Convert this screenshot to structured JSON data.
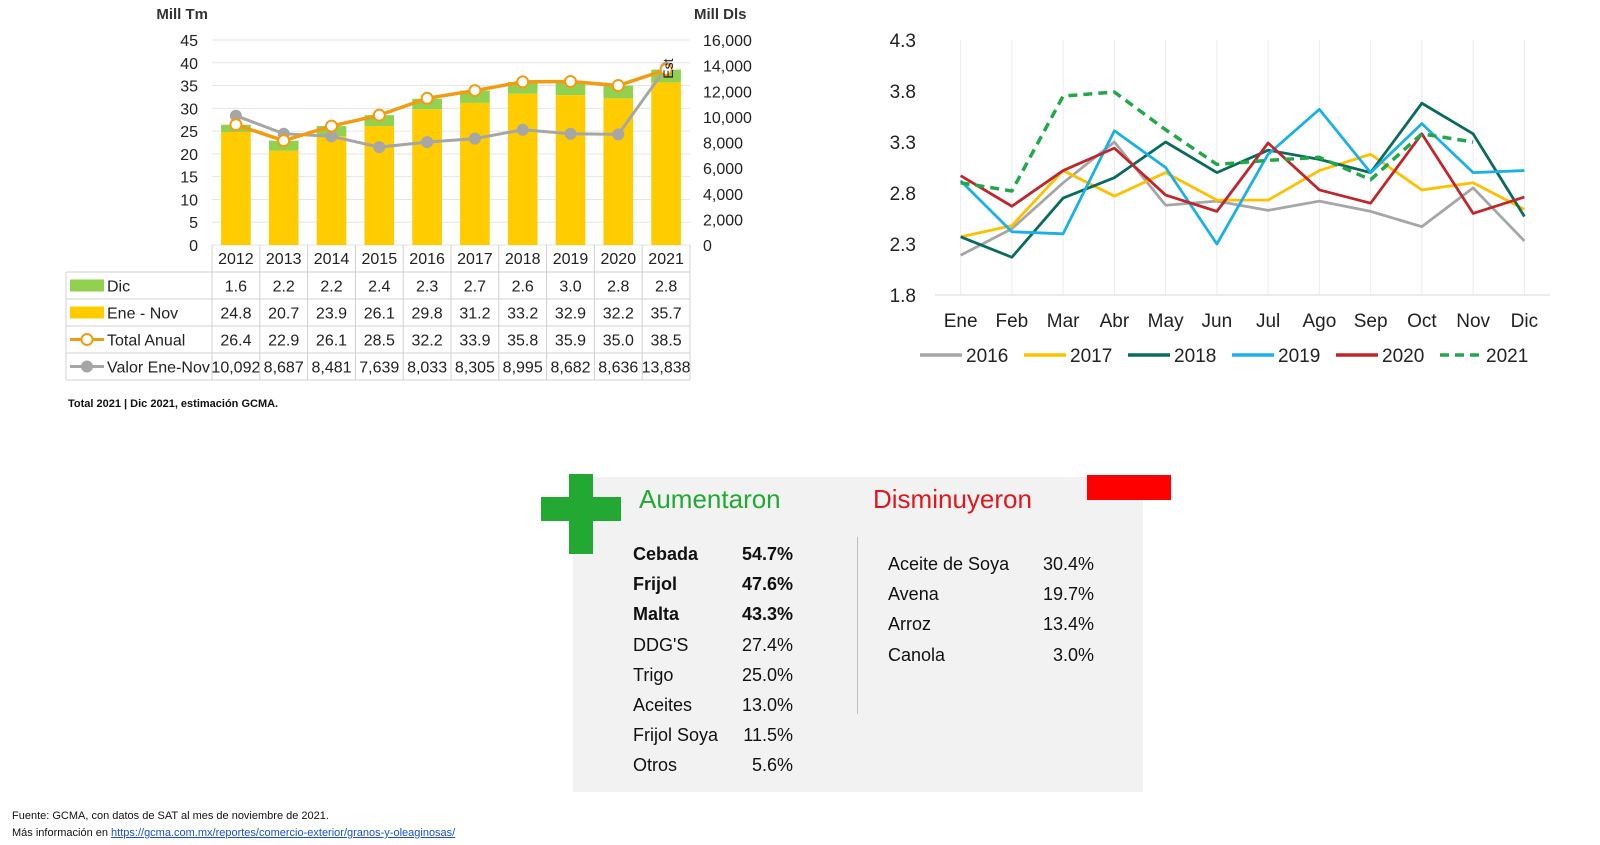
{
  "bar_chart_note": "Total 2021 | Dic 2021, estimación GCMA.",
  "panel": {
    "increase_title": "Aumentaron",
    "decrease_title": "Disminuyeron",
    "increase_color": "#22a833",
    "decrease_color": "#e3161d",
    "increased": [
      {
        "name": "Cebada",
        "pct": "54.7%",
        "bold": true
      },
      {
        "name": "Frijol",
        "pct": "47.6%",
        "bold": true
      },
      {
        "name": "Malta",
        "pct": "43.3%",
        "bold": true
      },
      {
        "name": "DDG'S",
        "pct": "27.4%",
        "bold": false
      },
      {
        "name": "Trigo",
        "pct": "25.0%",
        "bold": false
      },
      {
        "name": "Aceites",
        "pct": "13.0%",
        "bold": false
      },
      {
        "name": "Frijol Soya",
        "pct": "11.5%",
        "bold": false
      },
      {
        "name": "Otros",
        "pct": "5.6%",
        "bold": false
      }
    ],
    "decreased": [
      {
        "name": "Aceite de Soya",
        "pct": "30.4%"
      },
      {
        "name": "Avena",
        "pct": "19.7%"
      },
      {
        "name": "Arroz",
        "pct": "13.4%"
      },
      {
        "name": "Canola",
        "pct": "3.0%"
      }
    ]
  },
  "source": {
    "line1": "Fuente: GCMA, con datos de SAT al mes de noviembre de 2021.",
    "line2_prefix": "Más información en ",
    "link": "https://gcma.com.mx/reportes/comercio-exterior/granos-y-oleaginosas/"
  },
  "chart_data": [
    {
      "type": "bar",
      "stacked": true,
      "y1label": "Mill Tm",
      "y2label": "Mill Dls",
      "y1lim": [
        0,
        45
      ],
      "y1ticks": [
        "0",
        "5",
        "10",
        "15",
        "20",
        "25",
        "30",
        "35",
        "40",
        "45"
      ],
      "y2lim": [
        0,
        16000
      ],
      "y2ticks": [
        "0",
        "2,000",
        "4,000",
        "6,000",
        "8,000",
        "10,000",
        "12,000",
        "14,000",
        "16,000"
      ],
      "categories": [
        "2012",
        "2013",
        "2014",
        "2015",
        "2016",
        "2017",
        "2018",
        "2019",
        "2020",
        "2021"
      ],
      "annotation": "Est",
      "series": [
        {
          "name": "Dic",
          "kind": "bar",
          "color": "#92d050",
          "values": [
            1.6,
            2.2,
            2.2,
            2.4,
            2.3,
            2.7,
            2.6,
            3.0,
            2.8,
            2.8
          ],
          "labels": [
            "1.6",
            "2.2",
            "2.2",
            "2.4",
            "2.3",
            "2.7",
            "2.6",
            "3.0",
            "2.8",
            "2.8"
          ]
        },
        {
          "name": "Ene - Nov",
          "kind": "bar",
          "color": "#ffcc00",
          "values": [
            24.8,
            20.7,
            23.9,
            26.1,
            29.8,
            31.2,
            33.2,
            32.9,
            32.2,
            35.7
          ],
          "labels": [
            "24.8",
            "20.7",
            "23.9",
            "26.1",
            "29.8",
            "31.2",
            "33.2",
            "32.9",
            "32.2",
            "35.7"
          ]
        },
        {
          "name": "Total Anual",
          "kind": "line",
          "axis": "y1",
          "color": "#f39c12",
          "values": [
            26.4,
            22.9,
            26.1,
            28.5,
            32.2,
            33.9,
            35.8,
            35.9,
            35.0,
            38.5
          ],
          "labels": [
            "26.4",
            "22.9",
            "26.1",
            "28.5",
            "32.2",
            "33.9",
            "35.8",
            "35.9",
            "35.0",
            "38.5"
          ]
        },
        {
          "name": "Valor Ene-Nov",
          "kind": "line",
          "axis": "y2",
          "color": "#a6a6a6",
          "values": [
            10092,
            8687,
            8481,
            7639,
            8033,
            8305,
            8995,
            8682,
            8636,
            13838
          ],
          "labels": [
            "10,092",
            "8,687",
            "8,481",
            "7,639",
            "8,033",
            "8,305",
            "8,995",
            "8,682",
            "8,636",
            "13,838"
          ]
        }
      ]
    },
    {
      "type": "line",
      "ylim": [
        1.8,
        4.3
      ],
      "yticks": [
        "1.8",
        "2.3",
        "2.8",
        "3.3",
        "3.8",
        "4.3"
      ],
      "x": [
        "Ene",
        "Feb",
        "Mar",
        "Abr",
        "May",
        "Jun",
        "Jul",
        "Ago",
        "Sep",
        "Oct",
        "Nov",
        "Dic"
      ],
      "legend": "bottom",
      "series": [
        {
          "name": "2016",
          "color": "#a6a6a6",
          "dashed": false,
          "values": [
            2.19,
            2.45,
            2.9,
            3.3,
            2.68,
            2.72,
            2.63,
            2.72,
            2.62,
            2.47,
            2.85,
            2.33
          ]
        },
        {
          "name": "2017",
          "color": "#ffc000",
          "dashed": false,
          "values": [
            2.37,
            2.48,
            3.02,
            2.77,
            3.0,
            2.73,
            2.73,
            3.02,
            3.18,
            2.83,
            2.9,
            2.64
          ]
        },
        {
          "name": "2018",
          "color": "#0b6b5c",
          "dashed": false,
          "values": [
            2.37,
            2.17,
            2.75,
            2.95,
            3.3,
            3.0,
            3.22,
            3.13,
            3.0,
            3.68,
            3.38,
            2.57
          ]
        },
        {
          "name": "2019",
          "color": "#1ab0ea",
          "dashed": false,
          "values": [
            2.92,
            2.42,
            2.4,
            3.41,
            3.05,
            2.3,
            3.18,
            3.62,
            3.0,
            3.48,
            3.0,
            3.02
          ]
        },
        {
          "name": "2020",
          "color": "#c0272d",
          "dashed": false,
          "values": [
            2.97,
            2.67,
            3.02,
            3.24,
            2.78,
            2.62,
            3.29,
            2.83,
            2.7,
            3.38,
            2.6,
            2.76
          ]
        },
        {
          "name": "2021",
          "color": "#22a84a",
          "dashed": true,
          "values": [
            2.9,
            2.82,
            3.75,
            3.79,
            3.42,
            3.08,
            3.12,
            3.15,
            2.93,
            3.38,
            3.3,
            null
          ]
        }
      ]
    }
  ]
}
